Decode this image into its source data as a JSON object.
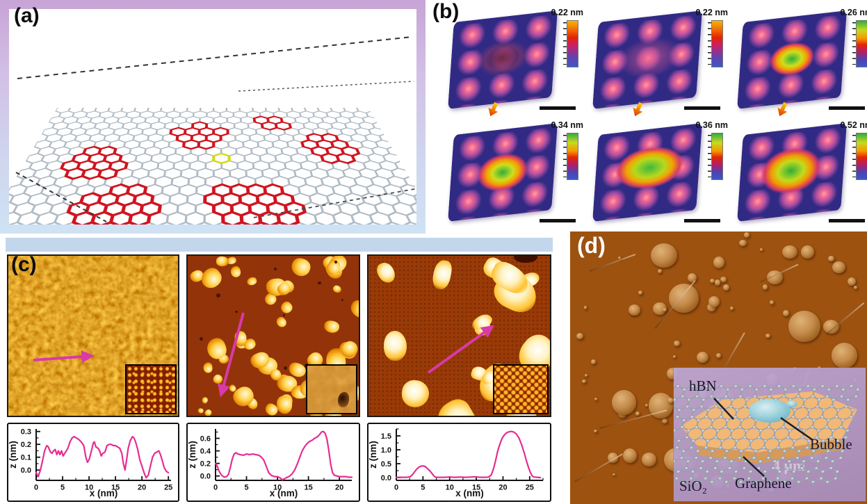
{
  "panels": {
    "a": {
      "label": "(a)"
    },
    "b": {
      "label": "(b)",
      "tiles": [
        {
          "scale_label": "0.22 nm",
          "colorbar": "orange",
          "feature": "dimple",
          "has_arrow": true
        },
        {
          "scale_label": "0.22 nm",
          "colorbar": "orange",
          "feature": "flat",
          "has_arrow": true
        },
        {
          "scale_label": "0.26 nm",
          "colorbar": "green",
          "feature": "mound-small",
          "has_arrow": true
        },
        {
          "scale_label": "0.34 nm",
          "colorbar": "green",
          "feature": "mound",
          "has_arrow": false
        },
        {
          "scale_label": "0.36 nm",
          "colorbar": "green",
          "feature": "mound-wide",
          "has_arrow": false
        },
        {
          "scale_label": "0.52 nm",
          "colorbar": "green",
          "feature": "mound-large",
          "has_arrow": false
        }
      ]
    },
    "c": {
      "label": "(c)"
    },
    "d": {
      "label": "(d)",
      "inset": {
        "hbn": "hBN",
        "bubble": "Bubble",
        "graphene": "Graphene",
        "sio2": "SiO₂",
        "scale_text": "4 μm"
      }
    }
  },
  "colors": {
    "profile_line": "#e52d92",
    "arrow_magenta": "#d83aa8",
    "panel_c_strip": "#c3d7ec",
    "afm_brown": "#9d5210",
    "colorbar_orange": [
      "#f9b500",
      "#e42500",
      "#c81f6e",
      "#3c57c8"
    ],
    "colorbar_green": [
      "#2fae3a",
      "#c8d921",
      "#f59a00",
      "#e42500",
      "#b01e6a",
      "#3c57c8"
    ]
  },
  "chart_data": [
    {
      "type": "line",
      "title": "",
      "xlabel": "x (nm)",
      "ylabel": "z (nm)",
      "xlim": [
        0,
        25.5
      ],
      "ylim": [
        -0.08,
        0.32
      ],
      "xticks": [
        0,
        5,
        10,
        15,
        20,
        25
      ],
      "yticks": [
        0,
        0.1,
        0.2,
        0.3
      ],
      "ytick_labels": [
        "0.0",
        "0.1",
        "0.2",
        "0.3"
      ],
      "line_color": "#e52d92",
      "grid": false,
      "legend": null,
      "points": [
        [
          0,
          -0.02
        ],
        [
          0.4,
          -0.05
        ],
        [
          0.8,
          0.0
        ],
        [
          1.2,
          0.07
        ],
        [
          1.6,
          0.15
        ],
        [
          2,
          0.19
        ],
        [
          2.3,
          0.18
        ],
        [
          2.7,
          0.14
        ],
        [
          3,
          0.13
        ],
        [
          3.3,
          0.15
        ],
        [
          3.6,
          0.16
        ],
        [
          3.9,
          0.12
        ],
        [
          4.2,
          0.15
        ],
        [
          4.5,
          0.12
        ],
        [
          4.8,
          0.15
        ],
        [
          5.1,
          0.11
        ],
        [
          5.4,
          0.13
        ],
        [
          5.7,
          0.15
        ],
        [
          6,
          0.17
        ],
        [
          6.4,
          0.22
        ],
        [
          6.8,
          0.25
        ],
        [
          7.2,
          0.26
        ],
        [
          7.6,
          0.25
        ],
        [
          8,
          0.24
        ],
        [
          8.5,
          0.22
        ],
        [
          9,
          0.19
        ],
        [
          9.4,
          0.1
        ],
        [
          9.7,
          0.06
        ],
        [
          10,
          0.08
        ],
        [
          10.4,
          0.14
        ],
        [
          10.8,
          0.21
        ],
        [
          11,
          0.22
        ],
        [
          11.3,
          0.18
        ],
        [
          11.7,
          0.17
        ],
        [
          12,
          0.15
        ],
        [
          12.3,
          0.11
        ],
        [
          12.6,
          0.13
        ],
        [
          13,
          0.14
        ],
        [
          13.4,
          0.19
        ],
        [
          13.8,
          0.2
        ],
        [
          14.2,
          0.2
        ],
        [
          14.6,
          0.19
        ],
        [
          15,
          0.19
        ],
        [
          15.4,
          0.18
        ],
        [
          15.8,
          0.17
        ],
        [
          16.2,
          0.13
        ],
        [
          16.5,
          0.05
        ],
        [
          16.8,
          0.0
        ],
        [
          17.1,
          0.08
        ],
        [
          17.4,
          0.17
        ],
        [
          17.8,
          0.23
        ],
        [
          18.2,
          0.26
        ],
        [
          18.5,
          0.25
        ],
        [
          18.8,
          0.22
        ],
        [
          19.2,
          0.16
        ],
        [
          19.6,
          0.08
        ],
        [
          20,
          0.03
        ],
        [
          20.4,
          -0.02
        ],
        [
          20.8,
          -0.06
        ],
        [
          21.2,
          -0.04
        ],
        [
          21.6,
          0.03
        ],
        [
          22,
          0.1
        ],
        [
          22.4,
          0.13
        ],
        [
          22.8,
          0.14
        ],
        [
          23.2,
          0.15
        ],
        [
          23.5,
          0.12
        ],
        [
          23.8,
          0.08
        ],
        [
          24.2,
          0.02
        ],
        [
          24.6,
          -0.01
        ],
        [
          25,
          -0.02
        ]
      ]
    },
    {
      "type": "line",
      "title": "",
      "xlabel": "x (nm)",
      "ylabel": "z (nm)",
      "xlim": [
        0,
        22
      ],
      "ylim": [
        -0.07,
        0.75
      ],
      "xticks": [
        0,
        5,
        10,
        15,
        20
      ],
      "yticks": [
        0,
        0.2,
        0.4,
        0.6
      ],
      "ytick_labels": [
        "0.0",
        "0.2",
        "0.4",
        "0.6"
      ],
      "line_color": "#e52d92",
      "grid": false,
      "legend": null,
      "points": [
        [
          0,
          0.2
        ],
        [
          0.3,
          0.15
        ],
        [
          0.6,
          0.07
        ],
        [
          1,
          0.01
        ],
        [
          1.4,
          -0.02
        ],
        [
          1.8,
          -0.01
        ],
        [
          2.1,
          0.03
        ],
        [
          2.4,
          0.14
        ],
        [
          2.7,
          0.27
        ],
        [
          3,
          0.35
        ],
        [
          3.3,
          0.37
        ],
        [
          3.6,
          0.35
        ],
        [
          4,
          0.34
        ],
        [
          4.5,
          0.33
        ],
        [
          5,
          0.35
        ],
        [
          5.5,
          0.34
        ],
        [
          6,
          0.35
        ],
        [
          6.5,
          0.34
        ],
        [
          7,
          0.33
        ],
        [
          7.4,
          0.3
        ],
        [
          7.8,
          0.25
        ],
        [
          8.2,
          0.15
        ],
        [
          8.6,
          0.05
        ],
        [
          9,
          0.01
        ],
        [
          9.5,
          -0.01
        ],
        [
          10,
          -0.01
        ],
        [
          10.4,
          -0.03
        ],
        [
          10.8,
          -0.06
        ],
        [
          11.2,
          -0.04
        ],
        [
          11.6,
          -0.02
        ],
        [
          12,
          0.0
        ],
        [
          12.4,
          0.04
        ],
        [
          12.8,
          0.1
        ],
        [
          13.2,
          0.19
        ],
        [
          13.6,
          0.3
        ],
        [
          14,
          0.4
        ],
        [
          14.4,
          0.47
        ],
        [
          14.8,
          0.52
        ],
        [
          15.2,
          0.55
        ],
        [
          15.6,
          0.57
        ],
        [
          16,
          0.6
        ],
        [
          16.4,
          0.62
        ],
        [
          16.8,
          0.66
        ],
        [
          17.1,
          0.7
        ],
        [
          17.4,
          0.71
        ],
        [
          17.7,
          0.68
        ],
        [
          18,
          0.58
        ],
        [
          18.3,
          0.4
        ],
        [
          18.6,
          0.18
        ],
        [
          18.9,
          0.05
        ],
        [
          19.2,
          0.01
        ],
        [
          19.6,
          0.0
        ],
        [
          20,
          -0.01
        ],
        [
          20.5,
          -0.01
        ],
        [
          21,
          -0.01
        ],
        [
          21.5,
          -0.02
        ],
        [
          22,
          -0.02
        ]
      ]
    },
    {
      "type": "line",
      "title": "",
      "xlabel": "x (nm)",
      "ylabel": "z (nm)",
      "xlim": [
        0,
        27.5
      ],
      "ylim": [
        -0.1,
        1.75
      ],
      "xticks": [
        0,
        5,
        10,
        15,
        20,
        25
      ],
      "yticks": [
        0,
        0.5,
        1.0,
        1.5
      ],
      "ytick_labels": [
        "0.0",
        "0.5",
        "1.0",
        "1.5"
      ],
      "line_color": "#e52d92",
      "grid": false,
      "legend": null,
      "points": [
        [
          0,
          0.01
        ],
        [
          1,
          0.01
        ],
        [
          2,
          0.01
        ],
        [
          2.6,
          0.03
        ],
        [
          3,
          0.1
        ],
        [
          3.4,
          0.2
        ],
        [
          3.8,
          0.3
        ],
        [
          4.2,
          0.37
        ],
        [
          4.6,
          0.41
        ],
        [
          5,
          0.42
        ],
        [
          5.4,
          0.4
        ],
        [
          5.8,
          0.33
        ],
        [
          6.2,
          0.26
        ],
        [
          6.6,
          0.17
        ],
        [
          7,
          0.07
        ],
        [
          7.3,
          0.02
        ],
        [
          7.6,
          0.01
        ],
        [
          8,
          0.01
        ],
        [
          9,
          0.01
        ],
        [
          10,
          0.02
        ],
        [
          11,
          0.01
        ],
        [
          12,
          0.02
        ],
        [
          13,
          0.01
        ],
        [
          14,
          0.02
        ],
        [
          14.5,
          0.03
        ],
        [
          15,
          0.02
        ],
        [
          16,
          0.01
        ],
        [
          17,
          0.01
        ],
        [
          17.4,
          0.03
        ],
        [
          17.8,
          0.1
        ],
        [
          18.2,
          0.3
        ],
        [
          18.6,
          0.6
        ],
        [
          19,
          0.95
        ],
        [
          19.4,
          1.2
        ],
        [
          19.8,
          1.4
        ],
        [
          20.2,
          1.52
        ],
        [
          20.6,
          1.6
        ],
        [
          21,
          1.64
        ],
        [
          21.5,
          1.66
        ],
        [
          22,
          1.64
        ],
        [
          22.5,
          1.57
        ],
        [
          23,
          1.42
        ],
        [
          23.5,
          1.18
        ],
        [
          24,
          0.88
        ],
        [
          24.4,
          0.6
        ],
        [
          24.8,
          0.35
        ],
        [
          25.2,
          0.15
        ],
        [
          25.5,
          0.05
        ],
        [
          25.8,
          0.02
        ],
        [
          26.4,
          0.01
        ],
        [
          27,
          0.0
        ]
      ]
    }
  ]
}
